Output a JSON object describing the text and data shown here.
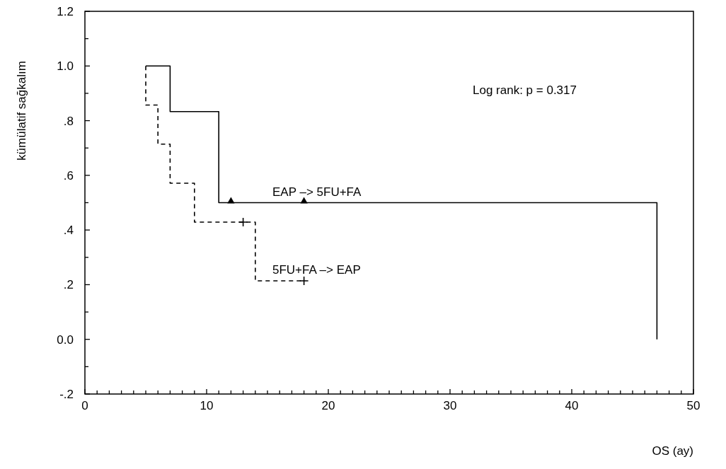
{
  "chart_data": {
    "type": "step",
    "xlabel": "OS (ay)",
    "ylabel": "kümülatif sağkalım",
    "annotations": [
      "Log rank: p = 0.317"
    ],
    "xlim": [
      0,
      50
    ],
    "ylim": [
      -0.2,
      1.2
    ],
    "xticks": [
      0,
      {
        "value": 1,
        "label": null
      },
      {
        "value": 2,
        "label": null
      },
      {
        "value": 3,
        "label": null
      },
      {
        "value": 4,
        "label": null
      },
      {
        "value": 5,
        "label": null
      },
      {
        "value": 6,
        "label": null
      },
      {
        "value": 7,
        "label": null
      },
      {
        "value": 8,
        "label": null
      },
      {
        "value": 9,
        "label": null
      },
      10,
      {
        "value": 11,
        "label": null
      },
      {
        "value": 12,
        "label": null
      },
      {
        "value": 13,
        "label": null
      },
      {
        "value": 14,
        "label": null
      },
      {
        "value": 15,
        "label": null
      },
      {
        "value": 16,
        "label": null
      },
      {
        "value": 17,
        "label": null
      },
      {
        "value": 18,
        "label": null
      },
      {
        "value": 19,
        "label": null
      },
      20,
      {
        "value": 21,
        "label": null
      },
      {
        "value": 22,
        "label": null
      },
      {
        "value": 23,
        "label": null
      },
      {
        "value": 24,
        "label": null
      },
      {
        "value": 25,
        "label": null
      },
      {
        "value": 26,
        "label": null
      },
      {
        "value": 27,
        "label": null
      },
      {
        "value": 28,
        "label": null
      },
      {
        "value": 29,
        "label": null
      },
      30,
      {
        "value": 31,
        "label": null
      },
      {
        "value": 32,
        "label": null
      },
      {
        "value": 33,
        "label": null
      },
      {
        "value": 34,
        "label": null
      },
      {
        "value": 35,
        "label": null
      },
      {
        "value": 36,
        "label": null
      },
      {
        "value": 37,
        "label": null
      },
      {
        "value": 38,
        "label": null
      },
      {
        "value": 39,
        "label": null
      },
      40,
      {
        "value": 41,
        "label": null
      },
      {
        "value": 42,
        "label": null
      },
      {
        "value": 43,
        "label": null
      },
      {
        "value": 44,
        "label": null
      },
      {
        "value": 45,
        "label": null
      },
      {
        "value": 46,
        "label": null
      },
      {
        "value": 47,
        "label": null
      },
      {
        "value": 48,
        "label": null
      },
      {
        "value": 49,
        "label": null
      },
      50
    ],
    "yticks": [
      {
        "value": -0.2,
        "label": "-.2"
      },
      {
        "value": -0.1,
        "label": null
      },
      {
        "value": 0,
        "label": "0.0"
      },
      {
        "value": 0.1,
        "label": null
      },
      {
        "value": 0.2,
        "label": ".2"
      },
      {
        "value": 0.3,
        "label": null
      },
      {
        "value": 0.4,
        "label": ".4"
      },
      {
        "value": 0.5,
        "label": null
      },
      {
        "value": 0.6,
        "label": ".6"
      },
      {
        "value": 0.7,
        "label": null
      },
      {
        "value": 0.8,
        "label": ".8"
      },
      {
        "value": 0.9,
        "label": null
      },
      {
        "value": 1.0,
        "label": "1.0"
      },
      {
        "value": 1.1,
        "label": null
      },
      {
        "value": 1.2,
        "label": "1.2"
      }
    ],
    "grid": false,
    "legend": false,
    "series": [
      {
        "name": "EAP –> 5FU+FA",
        "color": "#000000",
        "line_style": "solid",
        "x": [
          5,
          7,
          11,
          47,
          47
        ],
        "values": [
          1.0,
          0.833,
          0.5,
          0.5,
          0
        ]
      },
      {
        "name": "5FU+FA –> EAP",
        "color": "#000000",
        "line_style": "dashed",
        "x": [
          5,
          5,
          6,
          7,
          9,
          14,
          18
        ],
        "values": [
          1.0,
          0.857,
          0.714,
          0.571,
          0.429,
          0.214,
          0.214
        ]
      },
      {
        "type": "scatter",
        "color": "#000000",
        "marker": "triangle",
        "x": [
          12,
          18
        ],
        "values": [
          0.5,
          0.5
        ]
      },
      {
        "type": "scatter",
        "color": "#000000",
        "marker": "cross",
        "x": [
          13,
          18
        ],
        "values": [
          0.429,
          0.214
        ]
      }
    ]
  }
}
